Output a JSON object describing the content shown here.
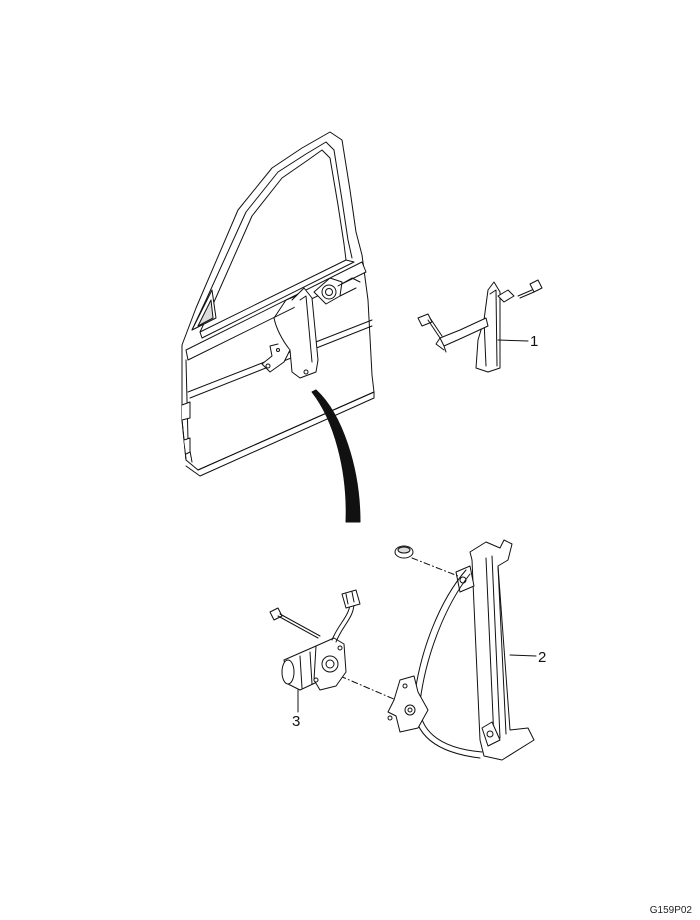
{
  "callouts": [
    {
      "id": "1",
      "label": "1"
    },
    {
      "id": "2",
      "label": "2"
    },
    {
      "id": "3",
      "label": "3"
    }
  ],
  "drawing_code": "G159P02",
  "colors": {
    "line": "#111111",
    "fill": "#ffffff",
    "arrow": "#111111",
    "shade": "#d9d9d9"
  }
}
